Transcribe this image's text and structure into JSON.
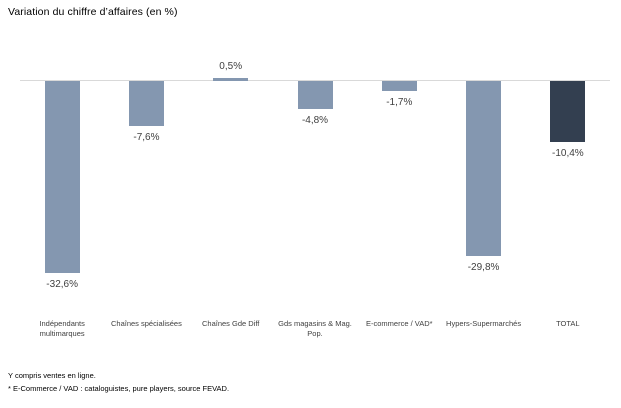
{
  "page": {
    "background_color": "#FFFFFF"
  },
  "chart_data": {
    "type": "bar",
    "title": "Variation du chiffre d’affaires (en %)",
    "categories": [
      "Indépendants\nmultimarques",
      "Chaînes spécialisées",
      "Chaînes Gde Diff",
      "Gds magasins & Mag.\nPop.",
      "E-commerce / VAD*",
      "Hypers-Supermarchés",
      "TOTAL"
    ],
    "values": [
      -32.6,
      -7.6,
      0.5,
      -4.8,
      -1.7,
      -29.8,
      -10.4
    ],
    "value_labels": [
      "-32,6%",
      "-7,6%",
      "0,5%",
      "-4,8%",
      "-1,7%",
      "-29,8%",
      "-10,4%"
    ],
    "bar_colors": [
      "#8497B0",
      "#8497B0",
      "#8497B0",
      "#8497B0",
      "#8497B0",
      "#8497B0",
      "#333F50"
    ],
    "accent_color": "#8497B0",
    "total_color": "#333F50",
    "axis_line_color": "#D9D9D9",
    "xlabel": "",
    "ylabel": "",
    "ylim": [
      -35,
      2.5
    ],
    "grid": false,
    "legend": false
  },
  "footnotes": [
    "Y compris ventes en ligne.",
    "* E-Commerce / VAD : cataloguistes, pure players, source FEVAD."
  ]
}
